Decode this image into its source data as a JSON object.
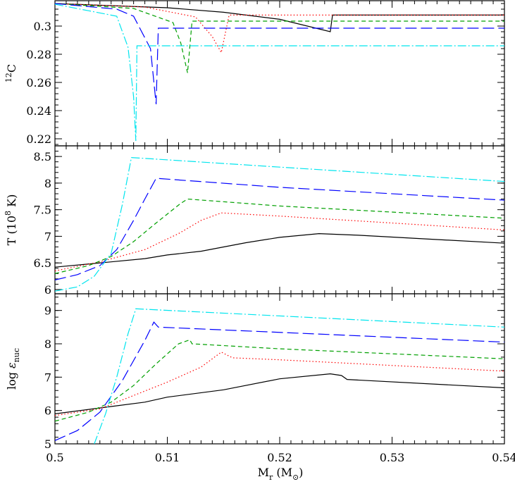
{
  "chart_data": {
    "type": "line",
    "shared_x": {
      "label": "Mr (M⊙)",
      "ticks": [
        "0.5",
        "0.51",
        "0.52",
        "0.53",
        "0.54"
      ],
      "range": [
        0.5,
        0.54
      ]
    },
    "series_styles": [
      {
        "color": "#000000",
        "dash": ""
      },
      {
        "color": "#ff0000",
        "dash": "1.5,3"
      },
      {
        "color": "#00a000",
        "dash": "6,4"
      },
      {
        "color": "#0000ff",
        "dash": "16,6"
      },
      {
        "color": "#00e5ee",
        "dash": "12,3,2,3"
      }
    ],
    "panels": [
      {
        "ylabel": "12C",
        "ylim": [
          0.215,
          0.318
        ],
        "ticks": [
          {
            "v": 0.22,
            "label": "0.22"
          },
          {
            "v": 0.24,
            "label": "0.24"
          },
          {
            "v": 0.26,
            "label": "0.26"
          },
          {
            "v": 0.28,
            "label": "0.28"
          },
          {
            "v": 0.3,
            "label": "0.3"
          }
        ],
        "series": [
          {
            "points": [
              [
                0.5,
                0.316
              ],
              [
                0.505,
                0.3145
              ],
              [
                0.51,
                0.313
              ],
              [
                0.515,
                0.3098
              ],
              [
                0.52,
                0.3048
              ],
              [
                0.5245,
                0.296
              ],
              [
                0.5247,
                0.3078
              ],
              [
                0.54,
                0.3078
              ]
            ]
          },
          {
            "points": [
              [
                0.5,
                0.316
              ],
              [
                0.508,
                0.3135
              ],
              [
                0.5125,
                0.3065
              ],
              [
                0.514,
                0.2925
              ],
              [
                0.5148,
                0.2812
              ],
              [
                0.5155,
                0.3078
              ],
              [
                0.54,
                0.3078
              ]
            ]
          },
          {
            "points": [
              [
                0.5,
                0.316
              ],
              [
                0.507,
                0.3125
              ],
              [
                0.5105,
                0.3025
              ],
              [
                0.5112,
                0.288
              ],
              [
                0.5118,
                0.2668
              ],
              [
                0.5122,
                0.3035
              ],
              [
                0.54,
                0.3035
              ]
            ]
          },
          {
            "points": [
              [
                0.5,
                0.316
              ],
              [
                0.5055,
                0.312
              ],
              [
                0.507,
                0.307
              ],
              [
                0.5085,
                0.284
              ],
              [
                0.509,
                0.2445
              ],
              [
                0.5092,
                0.2985
              ],
              [
                0.54,
                0.2985
              ]
            ]
          },
          {
            "points": [
              [
                0.5,
                0.3155
              ],
              [
                0.5055,
                0.307
              ],
              [
                0.5065,
                0.285
              ],
              [
                0.507,
                0.25
              ],
              [
                0.5072,
                0.2185
              ],
              [
                0.5073,
                0.286
              ],
              [
                0.54,
                0.286
              ]
            ]
          }
        ]
      },
      {
        "ylabel": "T (108 K)",
        "ylim": [
          5.92,
          8.7
        ],
        "ticks": [
          {
            "v": 6.0,
            "label": "6"
          },
          {
            "v": 6.5,
            "label": "6.5"
          },
          {
            "v": 7.0,
            "label": "7"
          },
          {
            "v": 7.5,
            "label": "7.5"
          },
          {
            "v": 8.0,
            "label": "8"
          },
          {
            "v": 8.5,
            "label": "8.5"
          }
        ],
        "series": [
          {
            "points": [
              [
                0.5,
                6.42
              ],
              [
                0.505,
                6.52
              ],
              [
                0.508,
                6.58
              ],
              [
                0.51,
                6.65
              ],
              [
                0.513,
                6.72
              ],
              [
                0.517,
                6.88
              ],
              [
                0.52,
                6.98
              ],
              [
                0.5235,
                7.05
              ],
              [
                0.527,
                7.02
              ],
              [
                0.54,
                6.87
              ]
            ]
          },
          {
            "points": [
              [
                0.5,
                6.35
              ],
              [
                0.504,
                6.52
              ],
              [
                0.508,
                6.75
              ],
              [
                0.511,
                7.05
              ],
              [
                0.513,
                7.3
              ],
              [
                0.5148,
                7.44
              ],
              [
                0.52,
                7.38
              ],
              [
                0.54,
                7.12
              ]
            ]
          },
          {
            "points": [
              [
                0.5,
                6.3
              ],
              [
                0.503,
                6.45
              ],
              [
                0.505,
                6.62
              ],
              [
                0.507,
                6.9
              ],
              [
                0.509,
                7.25
              ],
              [
                0.5112,
                7.62
              ],
              [
                0.5118,
                7.7
              ],
              [
                0.52,
                7.57
              ],
              [
                0.54,
                7.34
              ]
            ]
          },
          {
            "points": [
              [
                0.5,
                6.18
              ],
              [
                0.502,
                6.28
              ],
              [
                0.504,
                6.45
              ],
              [
                0.5055,
                6.75
              ],
              [
                0.507,
                7.3
              ],
              [
                0.508,
                7.7
              ],
              [
                0.509,
                8.09
              ],
              [
                0.52,
                7.92
              ],
              [
                0.54,
                7.68
              ]
            ]
          },
          {
            "points": [
              [
                0.5,
                5.97
              ],
              [
                0.502,
                6.05
              ],
              [
                0.5035,
                6.25
              ],
              [
                0.505,
                6.68
              ],
              [
                0.506,
                7.6
              ],
              [
                0.5068,
                8.48
              ],
              [
                0.52,
                8.3
              ],
              [
                0.54,
                8.03
              ]
            ]
          }
        ]
      },
      {
        "ylabel": "log εnuc",
        "ylim": [
          5.0,
          9.5
        ],
        "ticks": [
          {
            "v": 5,
            "label": "5"
          },
          {
            "v": 6,
            "label": "6"
          },
          {
            "v": 7,
            "label": "7"
          },
          {
            "v": 8,
            "label": "8"
          },
          {
            "v": 9,
            "label": "9"
          }
        ],
        "series": [
          {
            "points": [
              [
                0.5,
                5.9
              ],
              [
                0.505,
                6.12
              ],
              [
                0.508,
                6.25
              ],
              [
                0.51,
                6.4
              ],
              [
                0.515,
                6.62
              ],
              [
                0.52,
                6.95
              ],
              [
                0.5245,
                7.1
              ],
              [
                0.5255,
                7.05
              ],
              [
                0.526,
                6.93
              ],
              [
                0.54,
                6.68
              ]
            ]
          },
          {
            "points": [
              [
                0.5,
                5.85
              ],
              [
                0.504,
                6.05
              ],
              [
                0.507,
                6.45
              ],
              [
                0.51,
                6.85
              ],
              [
                0.513,
                7.3
              ],
              [
                0.5148,
                7.75
              ],
              [
                0.5158,
                7.58
              ],
              [
                0.52,
                7.52
              ],
              [
                0.54,
                7.18
              ]
            ]
          },
          {
            "points": [
              [
                0.5,
                5.68
              ],
              [
                0.503,
                5.95
              ],
              [
                0.505,
                6.25
              ],
              [
                0.507,
                6.75
              ],
              [
                0.509,
                7.4
              ],
              [
                0.511,
                8.0
              ],
              [
                0.512,
                8.12
              ],
              [
                0.5122,
                8.0
              ],
              [
                0.52,
                7.85
              ],
              [
                0.54,
                7.55
              ]
            ]
          },
          {
            "points": [
              [
                0.5,
                5.1
              ],
              [
                0.502,
                5.4
              ],
              [
                0.504,
                5.95
              ],
              [
                0.506,
                6.9
              ],
              [
                0.508,
                8.1
              ],
              [
                0.5088,
                8.65
              ],
              [
                0.5092,
                8.5
              ],
              [
                0.54,
                8.05
              ]
            ]
          },
          {
            "points": [
              [
                0.5035,
                5.0
              ],
              [
                0.5045,
                5.9
              ],
              [
                0.5055,
                7.0
              ],
              [
                0.5065,
                8.3
              ],
              [
                0.5072,
                9.05
              ],
              [
                0.54,
                8.5
              ]
            ]
          }
        ]
      }
    ]
  }
}
